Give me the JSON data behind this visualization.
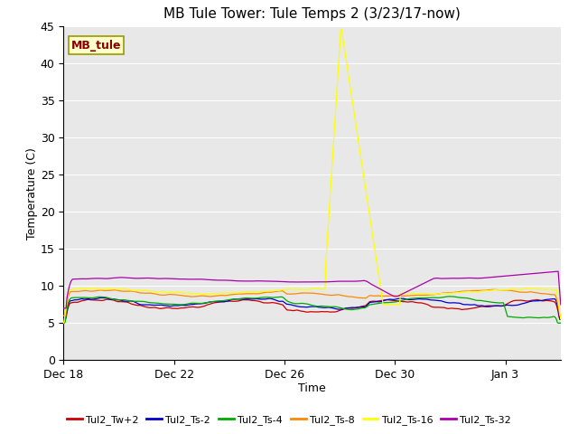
{
  "title": "MB Tule Tower: Tule Temps 2 (3/23/17-now)",
  "xlabel": "Time",
  "ylabel": "Temperature (C)",
  "ylim": [
    0,
    45
  ],
  "yticks": [
    0,
    5,
    10,
    15,
    20,
    25,
    30,
    35,
    40,
    45
  ],
  "fig_bg_color": "#ffffff",
  "plot_bg_color": "#e8e8e8",
  "title_fontsize": 11,
  "axis_fontsize": 9,
  "tick_fontsize": 9,
  "legend_label": "MB_tule",
  "series": [
    {
      "name": "Tul2_Tw+2",
      "color": "#cc0000"
    },
    {
      "name": "Tul2_Ts-2",
      "color": "#0000cc"
    },
    {
      "name": "Tul2_Ts-4",
      "color": "#00aa00"
    },
    {
      "name": "Tul2_Ts-8",
      "color": "#ff8800"
    },
    {
      "name": "Tul2_Ts-16",
      "color": "#ffff00"
    },
    {
      "name": "Tul2_Ts-32",
      "color": "#aa00aa"
    }
  ],
  "xtick_labels": [
    "Dec 18",
    "Dec 22",
    "Dec 26",
    "Dec 30",
    "Jan 3"
  ],
  "xtick_days": [
    0,
    4,
    8,
    12,
    16
  ],
  "n_days": 18
}
